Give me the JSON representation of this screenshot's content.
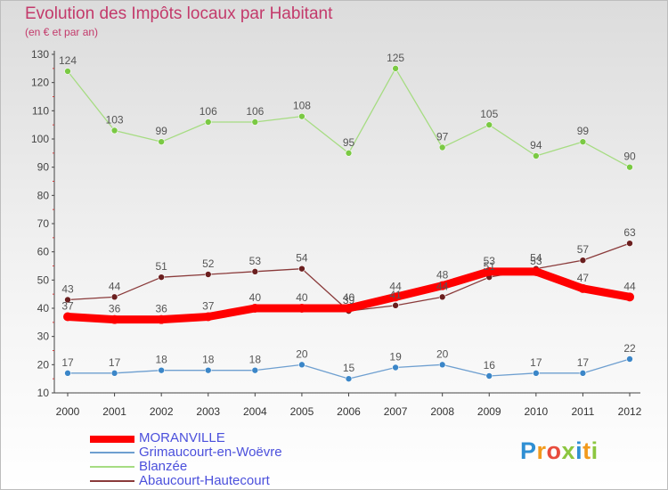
{
  "header": {
    "title": "Evolution des Impôts locaux par Habitant",
    "subtitle": "(en € et par an)"
  },
  "logo": {
    "text": "Proxiti",
    "colors": [
      "#2f8fd3",
      "#f29a1d",
      "#e84c3d",
      "#8cc63f",
      "#2f8fd3",
      "#f29a1d",
      "#8cc63f"
    ]
  },
  "chart_data": {
    "type": "line",
    "title": "Evolution des Impôts locaux par Habitant",
    "subtitle": "(en € et par an)",
    "xlabel": "",
    "ylabel": "",
    "categories": [
      "2000",
      "2001",
      "2002",
      "2003",
      "2004",
      "2005",
      "2006",
      "2007",
      "2008",
      "2009",
      "2010",
      "2011",
      "2012"
    ],
    "ylim": [
      10,
      130
    ],
    "yticks": [
      10,
      20,
      30,
      40,
      50,
      60,
      70,
      80,
      90,
      100,
      110,
      120,
      130
    ],
    "grid": false,
    "legend_position": "bottom-left",
    "series": [
      {
        "name": "MORANVILLE",
        "color": "#ff0000",
        "marker": "#ff0000",
        "values": [
          37,
          36,
          36,
          37,
          40,
          40,
          40,
          44,
          48,
          53,
          53,
          47,
          44
        ],
        "emphasis": true
      },
      {
        "name": "Grimaucourt-en-Woëvre",
        "color": "#6e9fd0",
        "marker": "#3b86c8",
        "values": [
          17,
          17,
          18,
          18,
          18,
          20,
          15,
          19,
          20,
          16,
          17,
          17,
          22
        ]
      },
      {
        "name": "Blanzée",
        "color": "#a6dc82",
        "marker": "#7ac943",
        "values": [
          124,
          103,
          99,
          106,
          106,
          108,
          95,
          125,
          97,
          105,
          94,
          99,
          90
        ]
      },
      {
        "name": "Abaucourt-Hautecourt",
        "color": "#8a3a3a",
        "marker": "#6b1f1f",
        "values": [
          43,
          44,
          51,
          52,
          53,
          54,
          39,
          41,
          44,
          51,
          54,
          57,
          63
        ]
      }
    ]
  }
}
